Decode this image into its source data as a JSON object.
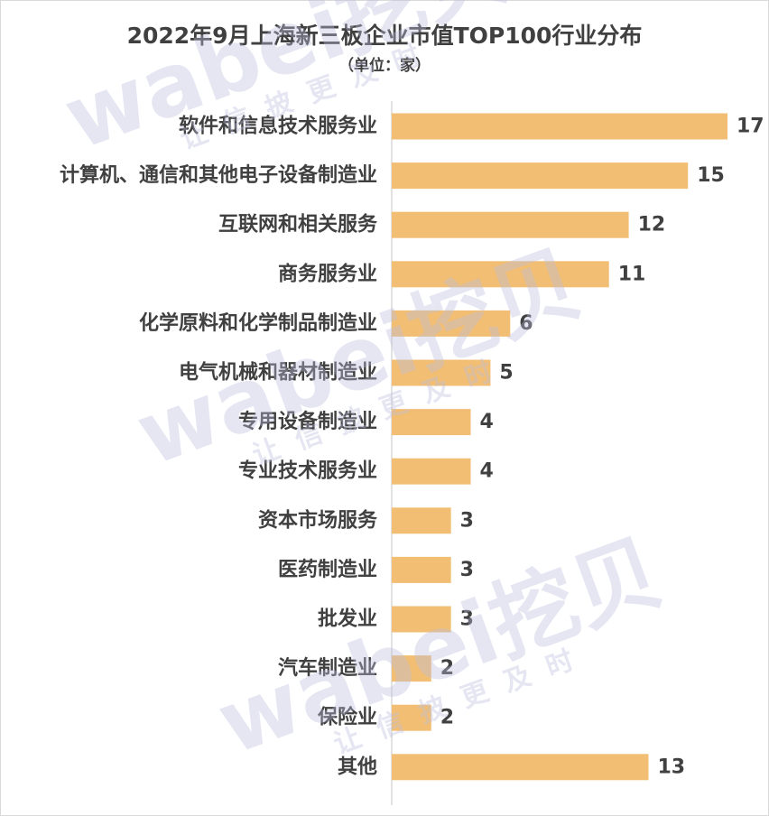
{
  "title": "2022年9月上海新三板企业市值TOP100行业分布",
  "subtitle": "（单位：家）",
  "watermark": {
    "main": "wabei挖贝",
    "tagline": "让信披更及时"
  },
  "colors": {
    "bar": "#F2BE74",
    "axis": "#d9d9d9",
    "text": "#404040"
  },
  "chart_data": {
    "type": "bar",
    "orientation": "horizontal",
    "title": "2022年9月上海新三板企业市值TOP100行业分布",
    "subtitle": "（单位：家）",
    "categories": [
      "软件和信息技术服务业",
      "计算机、通信和其他电子设备制造业",
      "互联网和相关服务",
      "商务服务业",
      "化学原料和化学制品制造业",
      "电气机械和器材制造业",
      "专用设备制造业",
      "专业技术服务业",
      "资本市场服务",
      "医药制造业",
      "批发业",
      "汽车制造业",
      "保险业",
      "其他"
    ],
    "values": [
      17,
      15,
      12,
      11,
      6,
      5,
      4,
      4,
      3,
      3,
      3,
      2,
      2,
      13
    ],
    "xlim": [
      0,
      17
    ],
    "grid": false,
    "legend": "none",
    "data_labels": true
  }
}
